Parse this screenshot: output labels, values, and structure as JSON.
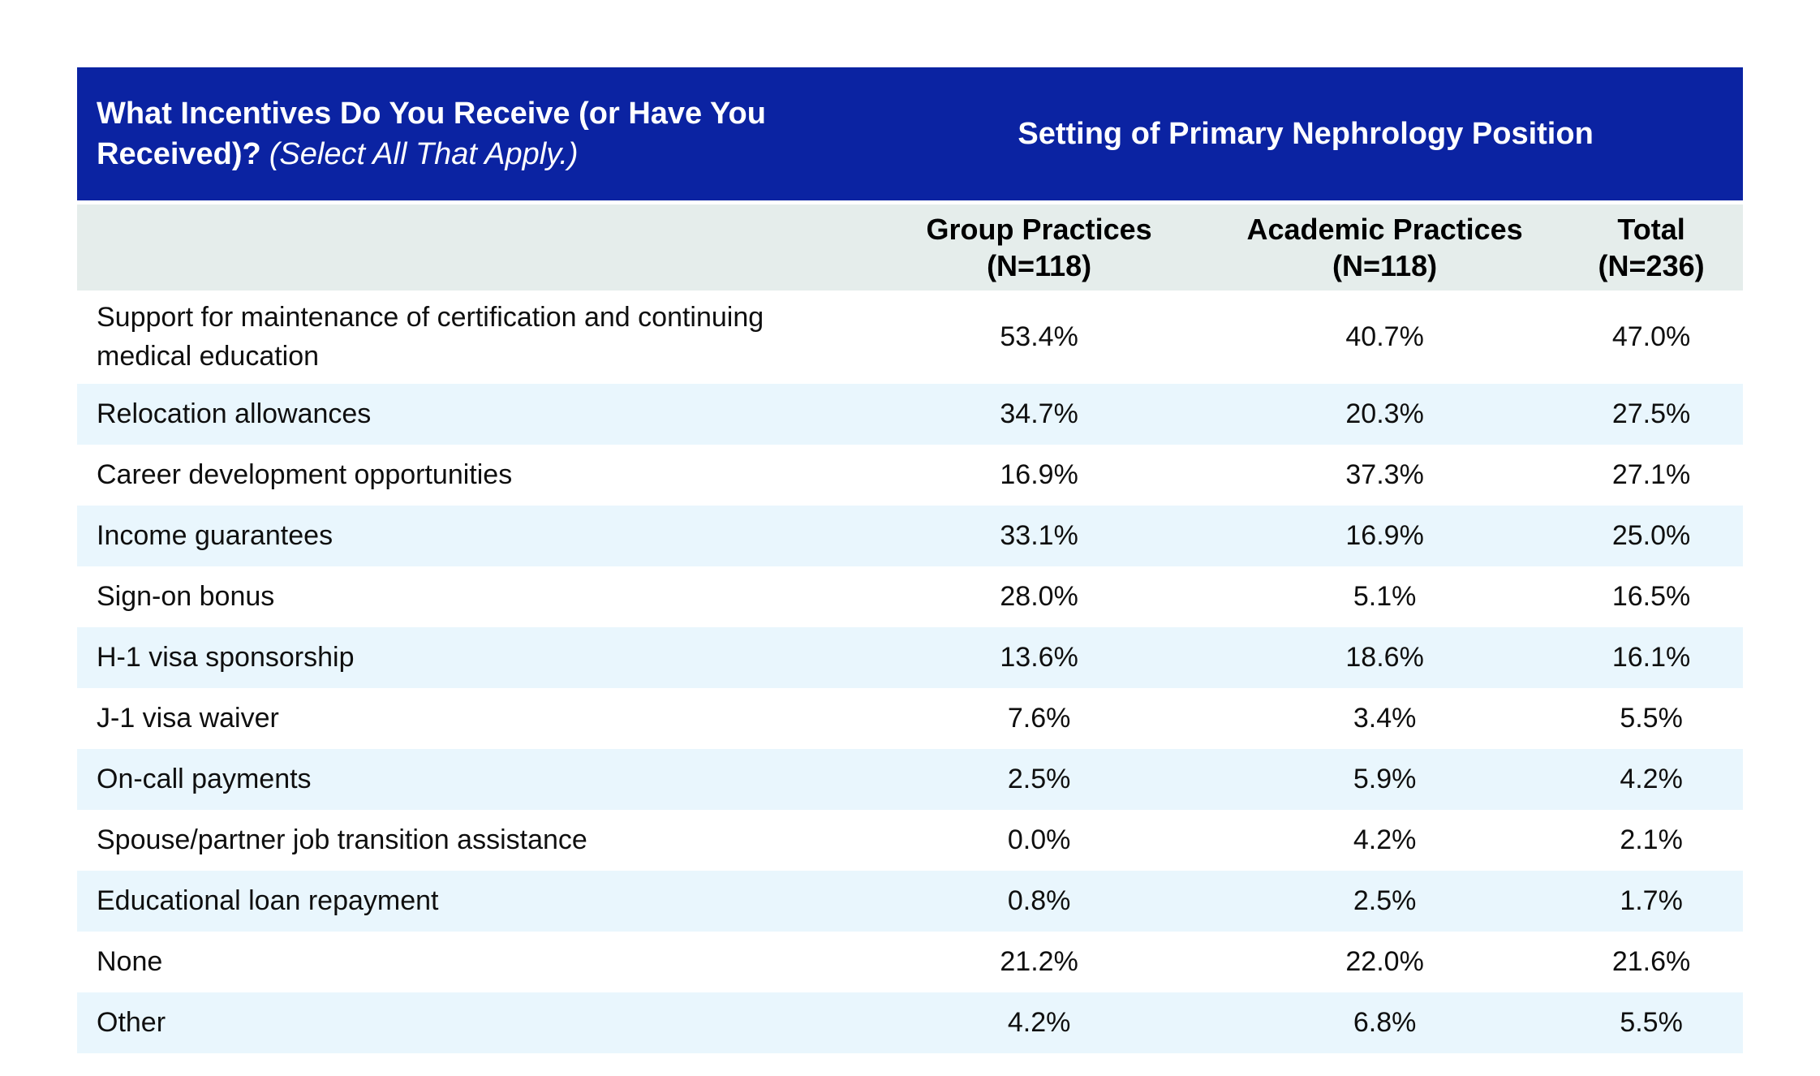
{
  "header": {
    "question_bold": "What Incentives Do You Receive (or Have You Received)?",
    "question_italic": "(Select All That Apply.)",
    "setting_title": "Setting of Primary Nephrology Position"
  },
  "columns": [
    {
      "name": "Group Practices",
      "n": "(N=118)"
    },
    {
      "name": "Academic Practices",
      "n": "(N=118)"
    },
    {
      "name": "Total",
      "n": "(N=236)"
    }
  ],
  "rows": [
    {
      "label": "Support for maintenance of certification and continuing medical education",
      "values": [
        "53.4%",
        "40.7%",
        "47.0%"
      ]
    },
    {
      "label": "Relocation allowances",
      "values": [
        "34.7%",
        "20.3%",
        "27.5%"
      ]
    },
    {
      "label": "Career development opportunities",
      "values": [
        "16.9%",
        "37.3%",
        "27.1%"
      ]
    },
    {
      "label": "Income guarantees",
      "values": [
        "33.1%",
        "16.9%",
        "25.0%"
      ]
    },
    {
      "label": "Sign-on bonus",
      "values": [
        "28.0%",
        "5.1%",
        "16.5%"
      ]
    },
    {
      "label": "H-1 visa sponsorship",
      "values": [
        "13.6%",
        "18.6%",
        "16.1%"
      ]
    },
    {
      "label": "J-1 visa waiver",
      "values": [
        "7.6%",
        "3.4%",
        "5.5%"
      ]
    },
    {
      "label": "On-call payments",
      "values": [
        "2.5%",
        "5.9%",
        "4.2%"
      ]
    },
    {
      "label": "Spouse/partner job transition assistance",
      "values": [
        "0.0%",
        "4.2%",
        "2.1%"
      ]
    },
    {
      "label": "Educational loan repayment",
      "values": [
        "0.8%",
        "2.5%",
        "1.7%"
      ]
    },
    {
      "label": "None",
      "values": [
        "21.2%",
        "22.0%",
        "21.6%"
      ]
    },
    {
      "label": "Other",
      "values": [
        "4.2%",
        "6.8%",
        "5.5%"
      ]
    }
  ],
  "colors": {
    "header_blue": "#0B23A2",
    "header_text": "#FFFFFF",
    "column_header_gray": "#E5EDEB",
    "row_alt_blue": "#E9F6FD",
    "row_white": "#FFFFFF",
    "body_text": "#0F0F0F"
  }
}
